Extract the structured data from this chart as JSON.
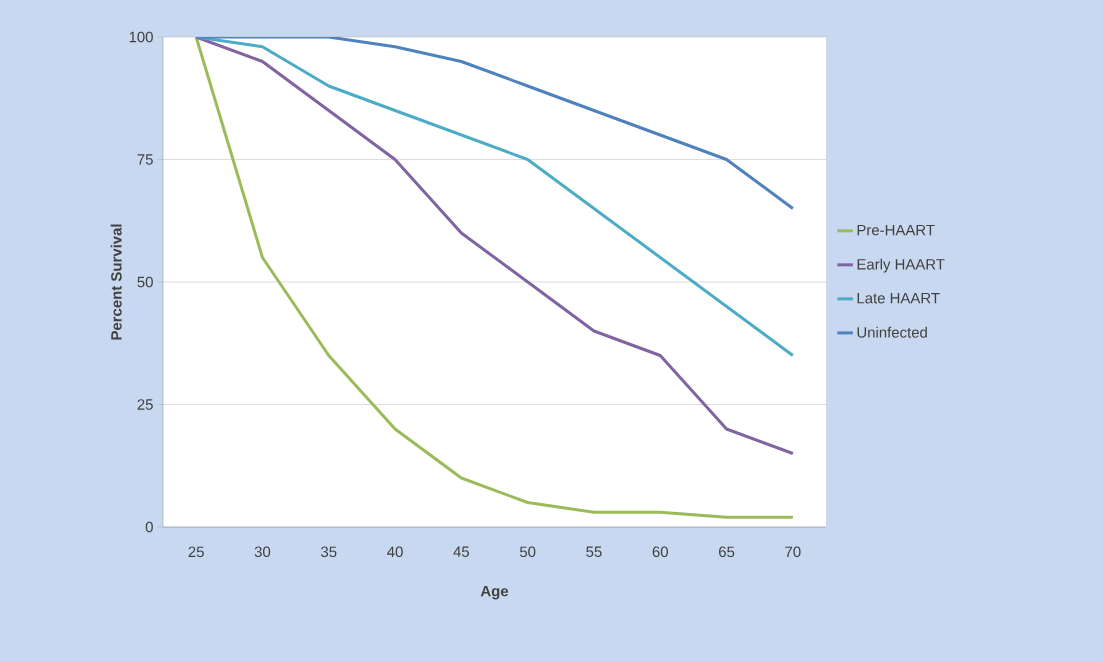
{
  "chart_data": {
    "type": "line",
    "xlabel": "Age",
    "ylabel": "Percent Survival",
    "categories": [
      "25",
      "30",
      "35",
      "40",
      "45",
      "50",
      "55",
      "60",
      "65",
      "70"
    ],
    "series": [
      {
        "name": "Pre-HAART",
        "color": "#9bbb59",
        "values": [
          100,
          55,
          35,
          20,
          10,
          5,
          3,
          3,
          2,
          2
        ]
      },
      {
        "name": "Early HAART",
        "color": "#8064a2",
        "values": [
          100,
          95,
          85,
          75,
          60,
          50,
          40,
          35,
          20,
          15
        ]
      },
      {
        "name": "Late HAART",
        "color": "#4bacc6",
        "values": [
          100,
          98,
          90,
          85,
          80,
          75,
          65,
          55,
          45,
          35
        ]
      },
      {
        "name": "Uninfected",
        "color": "#4f81bd",
        "values": [
          100,
          100,
          100,
          98,
          95,
          90,
          85,
          80,
          75,
          65
        ]
      }
    ],
    "ylim": [
      0,
      100
    ],
    "yticks": [
      0,
      25,
      50,
      75,
      100
    ],
    "grid": "y",
    "legend": "right",
    "marker": "none",
    "line_style": "solid"
  }
}
